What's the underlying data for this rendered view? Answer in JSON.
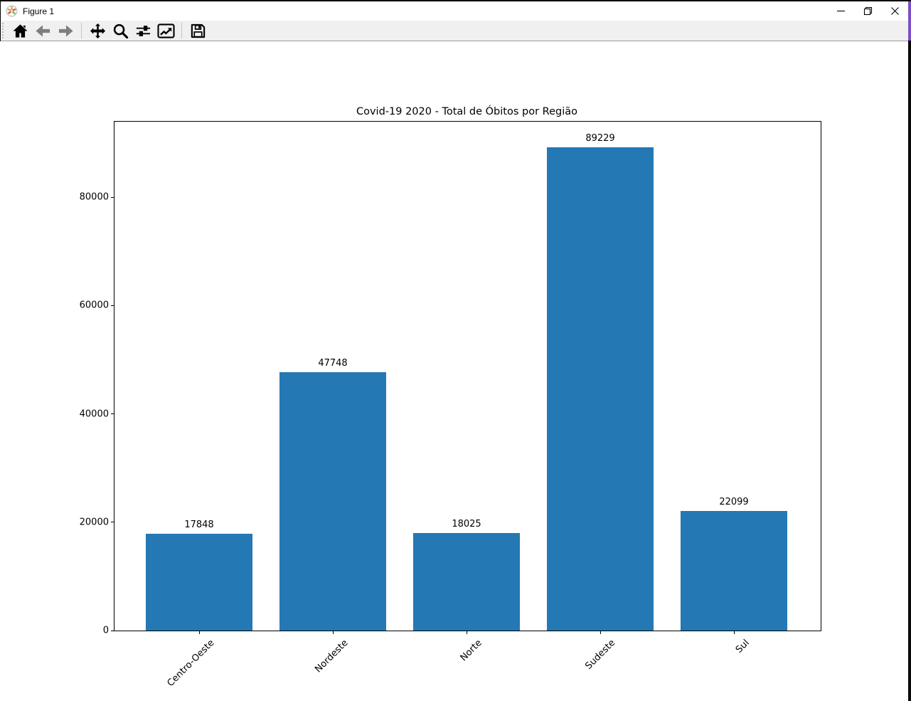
{
  "window": {
    "title": "Figure 1",
    "icon": "matplotlib-logo-icon",
    "controls": [
      "minimize",
      "restore",
      "close"
    ]
  },
  "toolbar": {
    "buttons": [
      {
        "name": "home",
        "icon": "home-icon"
      },
      {
        "name": "back",
        "icon": "back-arrow-icon"
      },
      {
        "name": "forward",
        "icon": "forward-arrow-icon"
      },
      {
        "name": "pan",
        "icon": "pan-arrows-icon"
      },
      {
        "name": "zoom",
        "icon": "magnifier-icon"
      },
      {
        "name": "configure-subplots",
        "icon": "sliders-icon"
      },
      {
        "name": "edit-parameters",
        "icon": "line-chart-icon"
      },
      {
        "name": "save",
        "icon": "floppy-disk-icon"
      }
    ]
  },
  "chrome": {
    "toolbar_bg": "#f0f0f0",
    "disabled_icon_color": "#7f7f7f",
    "border_black": "#000000",
    "right_strip_black": "#0a0a0a",
    "right_strip_purple": "#7d4fc4"
  },
  "chart_data": {
    "type": "bar",
    "title": "Covid-19 2020 - Total de Óbitos por Região",
    "categories": [
      "Centro-Oeste",
      "Nordeste",
      "Norte",
      "Sudeste",
      "Sul"
    ],
    "values": [
      17848,
      47748,
      18025,
      89229,
      22099
    ],
    "bar_value_labels": [
      "17848",
      "47748",
      "18025",
      "89229",
      "22099"
    ],
    "yticks": [
      0,
      20000,
      40000,
      60000,
      80000
    ],
    "ytick_labels": [
      "0",
      "20000",
      "40000",
      "60000",
      "80000"
    ],
    "ylim": [
      0,
      93925
    ],
    "xlabel": "",
    "ylabel": "",
    "grid": false,
    "legend": false,
    "xtick_rotation": 45,
    "bar_color": "#2478b4"
  }
}
